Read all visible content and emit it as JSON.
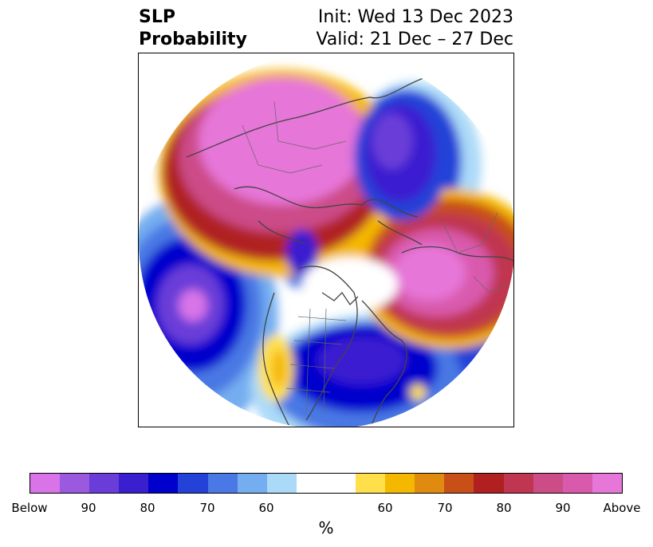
{
  "header": {
    "title_line1": "SLP",
    "title_line2": "Probability",
    "init": "Init: Wed 13 Dec 2023",
    "valid": "Valid: 21 Dec – 27 Dec"
  },
  "colorbar": {
    "unit_label": "%",
    "tick_labels": [
      "Below",
      "90",
      "80",
      "70",
      "60",
      "60",
      "70",
      "80",
      "90",
      "Above"
    ],
    "below_colors": [
      "#d874e8",
      "#9b59e0",
      "#6a3cd8",
      "#3a1fd0",
      "#0000cd",
      "#2442d8",
      "#4a78e4",
      "#74aef0",
      "#abdaf8"
    ],
    "neutral_color": "#ffffff",
    "above_colors": [
      "#ffe04a",
      "#f5b800",
      "#e08a10",
      "#c85018",
      "#b02020",
      "#c03550",
      "#cc4c88",
      "#d95aad",
      "#e676d8"
    ]
  },
  "map": {
    "projection": "north-polar-stereographic",
    "variable": "sea-level pressure probability"
  }
}
